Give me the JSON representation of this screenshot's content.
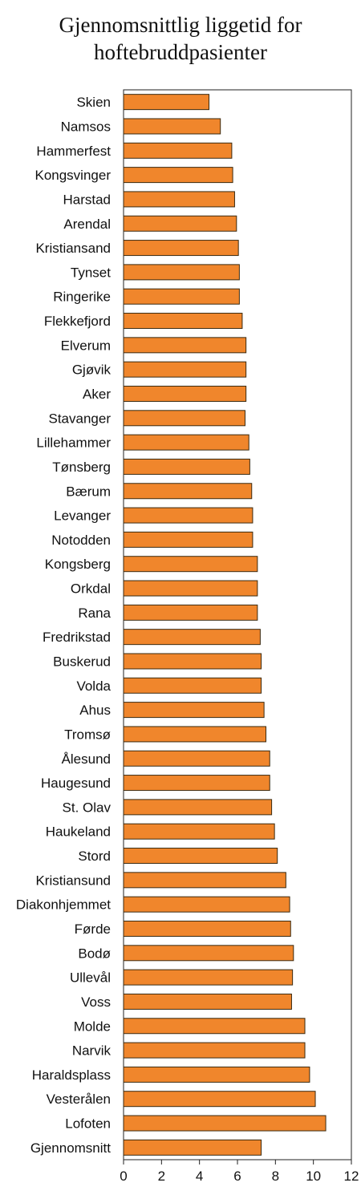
{
  "chart_data": {
    "type": "bar",
    "orientation": "horizontal",
    "title_lines": [
      "Gjennomsnittlig liggetid for",
      "hoftebruddpasienter"
    ],
    "categories": [
      "Skien",
      "Namsos",
      "Hammerfest",
      "Kongsvinger",
      "Harstad",
      "Arendal",
      "Kristiansand",
      "Tynset",
      "Ringerike",
      "Flekkefjord",
      "Elverum",
      "Gjøvik",
      "Aker",
      "Stavanger",
      "Lillehammer",
      "Tønsberg",
      "Bærum",
      "Levanger",
      "Notodden",
      "Kongsberg",
      "Orkdal",
      "Rana",
      "Fredrikstad",
      "Buskerud",
      "Volda",
      "Ahus",
      "Tromsø",
      "Ålesund",
      "Haugesund",
      "St. Olav",
      "Haukeland",
      "Stord",
      "Kristiansund",
      "Diakonhjemmet",
      "Førde",
      "Bodø",
      "Ullevål",
      "Voss",
      "Molde",
      "Narvik",
      "Haraldsplass",
      "Vesterålen",
      "Lofoten",
      "Gjennomsnitt"
    ],
    "values": [
      4.5,
      5.1,
      5.7,
      5.75,
      5.85,
      5.95,
      6.05,
      6.1,
      6.1,
      6.25,
      6.45,
      6.45,
      6.45,
      6.4,
      6.6,
      6.65,
      6.75,
      6.8,
      6.8,
      7.05,
      7.05,
      7.05,
      7.2,
      7.25,
      7.25,
      7.4,
      7.5,
      7.7,
      7.7,
      7.8,
      7.95,
      8.1,
      8.55,
      8.75,
      8.8,
      8.95,
      8.9,
      8.85,
      9.55,
      9.55,
      9.8,
      10.1,
      10.65,
      7.25
    ],
    "xlim": [
      0,
      12
    ],
    "xticks": [
      0,
      2,
      4,
      6,
      8,
      10,
      12
    ],
    "grid": false,
    "bar_color": "#f0862c",
    "bar_edge_color": "#3a2a10"
  }
}
